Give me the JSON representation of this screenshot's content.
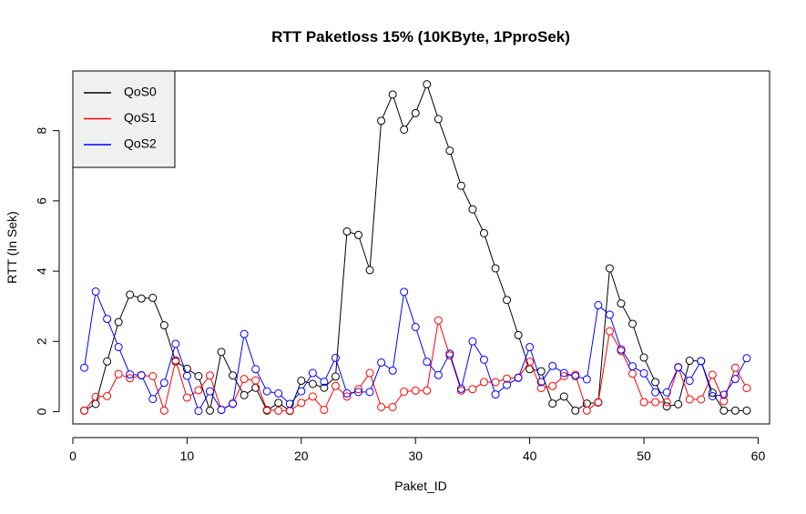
{
  "chart_data": {
    "type": "line",
    "title": "RTT Paketloss 15% (10KByte, 1PproSek)",
    "xlabel": "Paket_ID",
    "ylabel": "RTT (In Sek)",
    "xlim": [
      0,
      61
    ],
    "ylim": [
      -0.35,
      9.7
    ],
    "xticks": [
      0,
      10,
      20,
      30,
      40,
      50,
      60
    ],
    "yticks": [
      0,
      2,
      4,
      6,
      8
    ],
    "grid": false,
    "legend_position": "top-left",
    "markers": "open-circle",
    "series": [
      {
        "name": "QoS0",
        "color": "#000000",
        "x": [
          1,
          2,
          3,
          4,
          5,
          6,
          7,
          8,
          9,
          10,
          11,
          12,
          13,
          14,
          15,
          16,
          17,
          18,
          19,
          20,
          21,
          22,
          23,
          24,
          25,
          26,
          27,
          28,
          29,
          30,
          31,
          32,
          33,
          34,
          35,
          36,
          37,
          38,
          39,
          40,
          41,
          42,
          43,
          44,
          45,
          46,
          47,
          48,
          49,
          50,
          51,
          52,
          53,
          54,
          55,
          56,
          57,
          58,
          59
        ],
        "values": [
          0.03,
          0.22,
          1.43,
          2.55,
          3.33,
          3.22,
          3.24,
          2.46,
          1.43,
          1.22,
          1.01,
          0.03,
          1.7,
          1.03,
          0.47,
          0.68,
          0.03,
          0.25,
          0.02,
          0.88,
          0.79,
          0.68,
          1.0,
          5.13,
          5.03,
          4.03,
          8.28,
          9.03,
          8.03,
          8.5,
          9.32,
          8.33,
          7.43,
          6.43,
          5.76,
          5.08,
          4.08,
          3.18,
          2.18,
          1.21,
          1.15,
          0.23,
          0.43,
          0.03,
          0.23,
          0.26,
          4.08,
          3.08,
          2.5,
          1.54,
          0.84,
          0.15,
          0.21,
          1.45,
          1.44,
          0.54,
          0.03,
          0.03,
          0.03
        ]
      },
      {
        "name": "QoS1",
        "color": "#ff0000",
        "x": [
          1,
          2,
          3,
          4,
          5,
          6,
          7,
          8,
          9,
          10,
          11,
          12,
          13,
          14,
          15,
          16,
          17,
          18,
          19,
          20,
          21,
          22,
          23,
          24,
          25,
          26,
          27,
          28,
          29,
          30,
          31,
          32,
          33,
          34,
          35,
          36,
          37,
          38,
          39,
          40,
          41,
          42,
          43,
          44,
          45,
          46,
          47,
          48,
          49,
          50,
          51,
          52,
          53,
          54,
          55,
          56,
          57,
          58,
          59
        ],
        "values": [
          0.03,
          0.42,
          0.44,
          1.07,
          0.95,
          1.03,
          1.01,
          0.03,
          1.46,
          0.4,
          0.61,
          1.03,
          0.05,
          0.22,
          0.93,
          0.89,
          0.05,
          0.03,
          0.03,
          0.25,
          0.43,
          0.05,
          0.73,
          0.43,
          0.64,
          1.1,
          0.13,
          0.13,
          0.57,
          0.6,
          0.6,
          2.6,
          1.6,
          0.6,
          0.64,
          0.84,
          0.84,
          0.94,
          0.97,
          1.42,
          0.67,
          0.73,
          1.01,
          1.05,
          0.03,
          0.27,
          2.29,
          1.73,
          1.08,
          0.27,
          0.27,
          0.27,
          1.27,
          0.35,
          0.35,
          1.05,
          0.3,
          1.25,
          0.67
        ]
      },
      {
        "name": "QoS2",
        "color": "#0000ff",
        "x": [
          1,
          2,
          3,
          4,
          5,
          6,
          7,
          8,
          9,
          10,
          11,
          12,
          13,
          14,
          15,
          16,
          17,
          18,
          19,
          20,
          21,
          22,
          23,
          24,
          25,
          26,
          27,
          28,
          29,
          30,
          31,
          32,
          33,
          34,
          35,
          36,
          37,
          38,
          39,
          40,
          41,
          42,
          43,
          44,
          45,
          46,
          47,
          48,
          49,
          50,
          51,
          52,
          53,
          54,
          55,
          56,
          57,
          58,
          59
        ],
        "values": [
          1.25,
          3.42,
          2.64,
          1.84,
          1.06,
          1.04,
          0.36,
          0.82,
          1.93,
          1.02,
          0.02,
          0.58,
          0.05,
          0.23,
          2.21,
          1.21,
          0.58,
          0.52,
          0.22,
          0.58,
          1.1,
          0.85,
          1.53,
          0.52,
          0.56,
          0.56,
          1.4,
          1.17,
          3.41,
          2.41,
          1.42,
          1.04,
          1.65,
          0.65,
          2.0,
          1.48,
          0.49,
          0.76,
          0.96,
          1.84,
          0.84,
          1.3,
          1.1,
          1.01,
          0.92,
          3.03,
          2.76,
          1.77,
          1.29,
          1.09,
          0.55,
          0.55,
          1.26,
          0.88,
          1.44,
          0.44,
          0.48,
          0.93,
          1.52
        ]
      }
    ]
  }
}
